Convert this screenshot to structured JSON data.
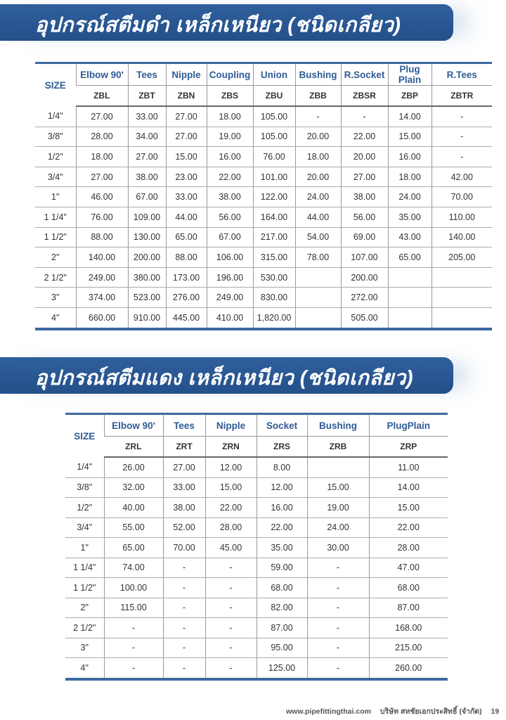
{
  "section1": {
    "title": "อุปกรณ์สตีมดำ เหล็กเหนียว (ชนิดเกลียว)",
    "size_header": "SIZE",
    "columns": [
      {
        "name": "Elbow 90'",
        "code": "ZBL"
      },
      {
        "name": "Tees",
        "code": "ZBT"
      },
      {
        "name": "Nipple",
        "code": "ZBN"
      },
      {
        "name": "Coupling",
        "code": "ZBS"
      },
      {
        "name": "Union",
        "code": "ZBU"
      },
      {
        "name": "Bushing",
        "code": "ZBB"
      },
      {
        "name": "R.Socket",
        "code": "ZBSR"
      },
      {
        "name": "Plug Plain",
        "code": "ZBP"
      },
      {
        "name": "R.Tees",
        "code": "ZBTR"
      }
    ],
    "rows": [
      {
        "size": "1/4\"",
        "values": [
          "27.00",
          "33.00",
          "27.00",
          "18.00",
          "105.00",
          "-",
          "-",
          "14.00",
          "-"
        ]
      },
      {
        "size": "3/8\"",
        "values": [
          "28.00",
          "34.00",
          "27.00",
          "19.00",
          "105.00",
          "20.00",
          "22.00",
          "15.00",
          "-"
        ]
      },
      {
        "size": "1/2\"",
        "values": [
          "18.00",
          "27.00",
          "15.00",
          "16.00",
          "76.00",
          "18.00",
          "20.00",
          "16.00",
          "-"
        ]
      },
      {
        "size": "3/4\"",
        "values": [
          "27.00",
          "38.00",
          "23.00",
          "22.00",
          "101.00",
          "20.00",
          "27.00",
          "18.00",
          "42.00"
        ]
      },
      {
        "size": "1\"",
        "values": [
          "46.00",
          "67.00",
          "33.00",
          "38.00",
          "122.00",
          "24.00",
          "38.00",
          "24.00",
          "70.00"
        ]
      },
      {
        "size": "1 1/4\"",
        "values": [
          "76.00",
          "109.00",
          "44.00",
          "56.00",
          "164.00",
          "44.00",
          "56.00",
          "35.00",
          "110.00"
        ]
      },
      {
        "size": "1 1/2\"",
        "values": [
          "88.00",
          "130.00",
          "65.00",
          "67.00",
          "217.00",
          "54.00",
          "69.00",
          "43.00",
          "140.00"
        ]
      },
      {
        "size": "2\"",
        "values": [
          "140.00",
          "200.00",
          "88.00",
          "106.00",
          "315.00",
          "78.00",
          "107.00",
          "65.00",
          "205.00"
        ]
      },
      {
        "size": "2 1/2\"",
        "values": [
          "249.00",
          "380.00",
          "173.00",
          "196.00",
          "530.00",
          "",
          "200.00",
          "",
          ""
        ]
      },
      {
        "size": "3\"",
        "values": [
          "374.00",
          "523.00",
          "276.00",
          "249.00",
          "830.00",
          "",
          "272.00",
          "",
          ""
        ]
      },
      {
        "size": "4\"",
        "values": [
          "660.00",
          "910.00",
          "445.00",
          "410.00",
          "1,820.00",
          "",
          "505.00",
          "",
          ""
        ]
      }
    ]
  },
  "section2": {
    "title": "อุปกรณ์สตีมแดง เหล็กเหนียว (ชนิดเกลียว)",
    "size_header": "SIZE",
    "columns": [
      {
        "name": "Elbow 90'",
        "code": "ZRL"
      },
      {
        "name": "Tees",
        "code": "ZRT"
      },
      {
        "name": "Nipple",
        "code": "ZRN"
      },
      {
        "name": "Socket",
        "code": "ZRS"
      },
      {
        "name": "Bushing",
        "code": "ZRB"
      },
      {
        "name": "PlugPlain",
        "code": "ZRP"
      }
    ],
    "rows": [
      {
        "size": "1/4\"",
        "values": [
          "26.00",
          "27.00",
          "12.00",
          "8.00",
          "",
          "11.00"
        ]
      },
      {
        "size": "3/8\"",
        "values": [
          "32.00",
          "33.00",
          "15.00",
          "12.00",
          "15.00",
          "14.00"
        ]
      },
      {
        "size": "1/2\"",
        "values": [
          "40.00",
          "38.00",
          "22.00",
          "16.00",
          "19.00",
          "15.00"
        ]
      },
      {
        "size": "3/4\"",
        "values": [
          "55.00",
          "52.00",
          "28.00",
          "22.00",
          "24.00",
          "22.00"
        ]
      },
      {
        "size": "1\"",
        "values": [
          "65.00",
          "70.00",
          "45.00",
          "35.00",
          "30.00",
          "28.00"
        ]
      },
      {
        "size": "1 1/4\"",
        "values": [
          "74.00",
          "-",
          "-",
          "59.00",
          "-",
          "47.00"
        ]
      },
      {
        "size": "1 1/2\"",
        "values": [
          "100.00",
          "-",
          "-",
          "68.00",
          "-",
          "68.00"
        ]
      },
      {
        "size": "2\"",
        "values": [
          "115.00",
          "-",
          "-",
          "82.00",
          "-",
          "87.00"
        ]
      },
      {
        "size": "2 1/2\"",
        "values": [
          "-",
          "-",
          "-",
          "87.00",
          "-",
          "168.00"
        ]
      },
      {
        "size": "3\"",
        "values": [
          "-",
          "-",
          "-",
          "95.00",
          "-",
          "215.00"
        ]
      },
      {
        "size": "4\"",
        "values": [
          "-",
          "-",
          "-",
          "125.00",
          "-",
          "260.00"
        ]
      }
    ]
  },
  "footer": {
    "website": "www.pipefittingthai.com",
    "company": "บริษัท สหชัยเอกประสิทธิ์ (จำกัด)",
    "page": "19"
  },
  "colors": {
    "banner": "#2a5690",
    "header_text": "#2f5c96",
    "rule": "#3c6aa0"
  }
}
